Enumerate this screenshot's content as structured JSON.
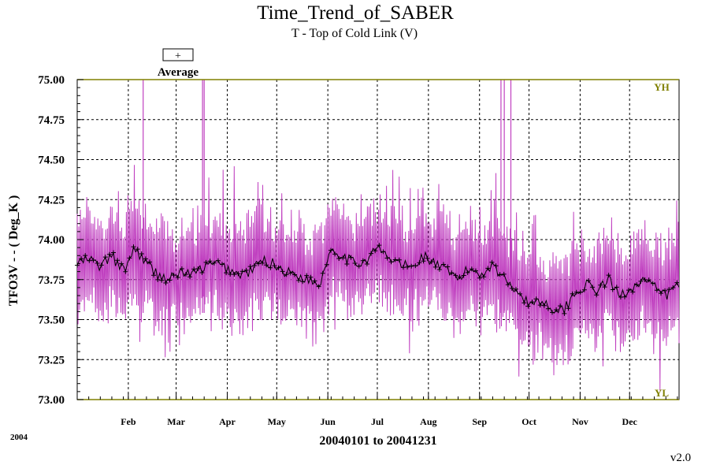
{
  "title": "Time_Trend_of_SABER",
  "subtitle": "T - Top of Cold Link (V)",
  "legend": {
    "symbol": "+",
    "label": "Average"
  },
  "year_label": "2004",
  "date_range": "20040101 to 20041231",
  "version": "v2.0",
  "colors": {
    "signal": "#c040c0",
    "average": "#000000",
    "limit": "#808000",
    "grid": "#000000"
  },
  "chart_data": {
    "type": "line",
    "title": "Time_Trend_of_SABER",
    "subtitle": "T - Top of Cold Link (V)",
    "xlabel": "20040101 to 20041231",
    "ylabel": "TFO3V  - - ( Deg_K )",
    "xlim": [
      "2004-01-01",
      "2004-12-31"
    ],
    "ylim": [
      73.0,
      75.0
    ],
    "yticks": [
      "73.00",
      "73.25",
      "73.50",
      "73.75",
      "74.00",
      "74.25",
      "74.50",
      "74.75",
      "75.00"
    ],
    "month_ticks": [
      {
        "label": "Feb",
        "date": "2004-02-01"
      },
      {
        "label": "Mar",
        "date": "2004-03-01"
      },
      {
        "label": "Apr",
        "date": "2004-04-01"
      },
      {
        "label": "May",
        "date": "2004-05-01"
      },
      {
        "label": "Jun",
        "date": "2004-06-01"
      },
      {
        "label": "Jul",
        "date": "2004-07-01"
      },
      {
        "label": "Aug",
        "date": "2004-08-01"
      },
      {
        "label": "Sep",
        "date": "2004-09-01"
      },
      {
        "label": "Oct",
        "date": "2004-10-01"
      },
      {
        "label": "Nov",
        "date": "2004-11-01"
      },
      {
        "label": "Dec",
        "date": "2004-12-01"
      }
    ],
    "limits": {
      "YH": 75.0,
      "YL": 73.0
    },
    "grid": true,
    "legend_position": "top-left",
    "series": [
      {
        "name": "Average",
        "marker": "+",
        "x": [
          "2004-01-01",
          "2004-01-08",
          "2004-01-15",
          "2004-01-22",
          "2004-01-29",
          "2004-02-05",
          "2004-02-12",
          "2004-02-19",
          "2004-02-26",
          "2004-03-04",
          "2004-03-11",
          "2004-03-18",
          "2004-03-25",
          "2004-04-01",
          "2004-04-08",
          "2004-04-15",
          "2004-04-22",
          "2004-04-29",
          "2004-05-06",
          "2004-05-13",
          "2004-05-20",
          "2004-05-27",
          "2004-06-03",
          "2004-06-10",
          "2004-06-17",
          "2004-06-24",
          "2004-07-01",
          "2004-07-08",
          "2004-07-15",
          "2004-07-22",
          "2004-07-29",
          "2004-08-05",
          "2004-08-12",
          "2004-08-19",
          "2004-08-26",
          "2004-09-02",
          "2004-09-09",
          "2004-09-16",
          "2004-09-23",
          "2004-09-30",
          "2004-10-07",
          "2004-10-14",
          "2004-10-21",
          "2004-10-28",
          "2004-11-04",
          "2004-11-11",
          "2004-11-18",
          "2004-11-25",
          "2004-12-02",
          "2004-12-09",
          "2004-12-16",
          "2004-12-23",
          "2004-12-31"
        ],
        "values": [
          73.85,
          73.88,
          73.83,
          73.9,
          73.8,
          73.95,
          73.85,
          73.78,
          73.75,
          73.8,
          73.78,
          73.83,
          73.85,
          73.82,
          73.78,
          73.8,
          73.87,
          73.85,
          73.8,
          73.78,
          73.75,
          73.72,
          73.95,
          73.9,
          73.85,
          73.87,
          73.95,
          73.88,
          73.85,
          73.82,
          73.9,
          73.85,
          73.8,
          73.75,
          73.82,
          73.78,
          73.85,
          73.75,
          73.7,
          73.6,
          73.62,
          73.58,
          73.55,
          73.65,
          73.72,
          73.68,
          73.75,
          73.65,
          73.7,
          73.75,
          73.7,
          73.65,
          73.72
        ]
      }
    ]
  }
}
